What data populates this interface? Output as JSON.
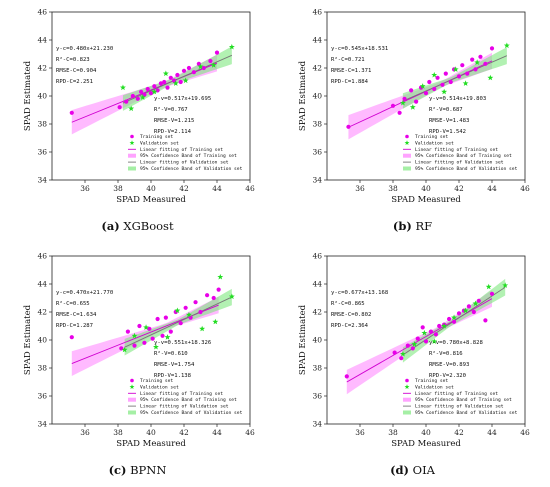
{
  "chart_data": [
    {
      "type": "scatter",
      "panel_label": "(a)",
      "model": "XGBoost",
      "xlabel": "SPAD Measured",
      "ylabel": "SPAD Estimated",
      "xlim": [
        34,
        46
      ],
      "ylim": [
        34,
        46
      ],
      "xticks": [
        36,
        38,
        40,
        42,
        44,
        46
      ],
      "yticks": [
        34,
        36,
        38,
        40,
        42,
        44,
        46
      ],
      "stats_train": [
        "y-c=0.480x+21.230",
        "R²-C=0.823",
        "RMSE-C=0.904",
        "RPD-C=2.251"
      ],
      "stats_val": [
        "y-v=0.517x+19.695",
        "R²-V=0.767",
        "RMSE-V=1.215",
        "RPD-V=2.114"
      ],
      "legend": [
        "Training set",
        "Validation set",
        "Linear fitting of Training set",
        "95% Confidence Band of Training set",
        "Linear fitting of Validation set",
        "95% Confidence Band of Validation set"
      ],
      "train_fit": {
        "slope": 0.48,
        "intercept": 21.23
      },
      "val_fit": {
        "slope": 0.517,
        "intercept": 19.695
      },
      "training": {
        "x": [
          35.2,
          38.1,
          38.5,
          38.9,
          39.2,
          39.4,
          39.6,
          39.8,
          40.0,
          40.2,
          40.4,
          40.6,
          40.8,
          41.0,
          41.2,
          41.4,
          41.6,
          41.8,
          42.0,
          42.3,
          42.6,
          42.9,
          43.2,
          43.6,
          44.0
        ],
        "y": [
          38.8,
          39.2,
          39.6,
          40.0,
          39.8,
          40.3,
          40.1,
          40.5,
          40.2,
          40.7,
          40.4,
          40.9,
          41.0,
          40.6,
          41.3,
          41.1,
          41.5,
          41.0,
          41.8,
          42.0,
          41.7,
          42.3,
          42.0,
          42.5,
          43.1
        ]
      },
      "validation": {
        "x": [
          38.3,
          38.8,
          39.5,
          40.2,
          40.9,
          41.5,
          42.1,
          43.0,
          43.8,
          44.9
        ],
        "y": [
          40.6,
          39.1,
          39.9,
          40.3,
          41.6,
          40.9,
          41.1,
          42.1,
          42.2,
          43.5
        ]
      }
    },
    {
      "type": "scatter",
      "panel_label": "(b)",
      "model": "RF",
      "xlabel": "SPAD Measured",
      "ylabel": "SPAD Estimated",
      "xlim": [
        34,
        46
      ],
      "ylim": [
        34,
        46
      ],
      "xticks": [
        36,
        38,
        40,
        42,
        44,
        46
      ],
      "yticks": [
        34,
        36,
        38,
        40,
        42,
        44,
        46
      ],
      "stats_train": [
        "y-c=0.545x+18.531",
        "R²-C=0.721",
        "RMSE-C=1.371",
        "RPD-C=1.884"
      ],
      "stats_val": [
        "y-v=0.514x+19.803",
        "R²-V=0.687",
        "RMSE-V=1.483",
        "RPD-V=1.542"
      ],
      "legend": [
        "Training set",
        "Validation set",
        "Linear fitting of Training set",
        "95% Confidence Band of Training set",
        "Linear fitting of Validation set",
        "95% Confidence Band of Validation set"
      ],
      "train_fit": {
        "slope": 0.545,
        "intercept": 18.531
      },
      "val_fit": {
        "slope": 0.514,
        "intercept": 19.803
      },
      "training": {
        "x": [
          35.3,
          38.0,
          38.4,
          38.7,
          39.1,
          39.4,
          39.7,
          40.0,
          40.2,
          40.5,
          40.7,
          41.0,
          41.2,
          41.5,
          41.7,
          42.0,
          42.2,
          42.5,
          42.8,
          43.0,
          43.3,
          43.6,
          44.0
        ],
        "y": [
          37.8,
          39.3,
          38.8,
          39.8,
          40.4,
          39.6,
          40.6,
          40.2,
          41.0,
          40.5,
          41.3,
          40.8,
          41.6,
          41.0,
          41.9,
          41.4,
          42.2,
          41.6,
          42.6,
          41.9,
          42.8,
          42.3,
          43.4
        ]
      },
      "validation": {
        "x": [
          38.6,
          39.2,
          39.8,
          40.5,
          41.1,
          41.8,
          42.4,
          43.1,
          43.9,
          44.9
        ],
        "y": [
          39.5,
          39.2,
          40.7,
          41.5,
          40.3,
          41.9,
          40.9,
          42.4,
          41.3,
          43.6
        ]
      }
    },
    {
      "type": "scatter",
      "panel_label": "(c)",
      "model": "BPNN",
      "xlabel": "SPAD Measured",
      "ylabel": "SPAD Estimated",
      "xlim": [
        34,
        46
      ],
      "ylim": [
        34,
        46
      ],
      "xticks": [
        36,
        38,
        40,
        42,
        44,
        46
      ],
      "yticks": [
        34,
        36,
        38,
        40,
        42,
        44,
        46
      ],
      "stats_train": [
        "y-c=0.470x+21.770",
        "R²-C=0.655",
        "RMSE-C=1.634",
        "RPD-C=1.287"
      ],
      "stats_val": [
        "y-v=0.551x+18.326",
        "R²-V=0.610",
        "RMSE-V=1.754",
        "RPD-V=1.138"
      ],
      "legend": [
        "Training set",
        "Validation set",
        "Linear fitting of Training set",
        "95% Confidence Band of Training set",
        "Linear fitting of Validation set",
        "95% Confidence Band of Validation set"
      ],
      "train_fit": {
        "slope": 0.47,
        "intercept": 21.77
      },
      "val_fit": {
        "slope": 0.551,
        "intercept": 18.326
      },
      "training": {
        "x": [
          35.2,
          38.2,
          38.6,
          39.0,
          39.3,
          39.6,
          39.9,
          40.1,
          40.4,
          40.7,
          40.9,
          41.2,
          41.5,
          41.8,
          42.1,
          42.4,
          42.7,
          43.0,
          43.4,
          43.8,
          44.1
        ],
        "y": [
          40.2,
          39.4,
          40.6,
          39.6,
          41.0,
          39.8,
          40.8,
          40.1,
          41.5,
          40.3,
          41.6,
          40.6,
          42.0,
          41.2,
          42.3,
          41.6,
          42.7,
          42.0,
          43.2,
          43.0,
          43.6
        ]
      },
      "validation": {
        "x": [
          38.4,
          39.0,
          39.7,
          40.3,
          41.0,
          41.6,
          42.3,
          43.1,
          43.9,
          44.2,
          44.9
        ],
        "y": [
          39.3,
          40.3,
          40.9,
          39.5,
          40.2,
          42.1,
          41.8,
          40.8,
          41.3,
          44.5,
          43.1
        ]
      }
    },
    {
      "type": "scatter",
      "panel_label": "(d)",
      "model": "OIA",
      "xlabel": "SPAD Measured",
      "ylabel": "SPAD Estimated",
      "xlim": [
        34,
        46
      ],
      "ylim": [
        34,
        46
      ],
      "xticks": [
        36,
        38,
        40,
        42,
        44,
        46
      ],
      "yticks": [
        34,
        36,
        38,
        40,
        42,
        44,
        46
      ],
      "stats_train": [
        "y-c=0.677x+13.168",
        "R²-C=0.865",
        "RMSE-C=0.802",
        "RPD-C=2.364"
      ],
      "stats_val": [
        "y-v=0.780x+8.828",
        "R²-V=0.816",
        "RMSE-V=0.893",
        "RPD-V=2.320"
      ],
      "legend": [
        "Training set",
        "Validation set",
        "Linear fitting of Training set",
        "95% Confidence Band of Training set",
        "Linear fitting of Validation set",
        "95% Confidence Band of Validation set"
      ],
      "train_fit": {
        "slope": 0.677,
        "intercept": 13.168
      },
      "val_fit": {
        "slope": 0.78,
        "intercept": 8.828
      },
      "training": {
        "x": [
          35.2,
          38.1,
          38.5,
          38.9,
          39.2,
          39.5,
          39.8,
          40.0,
          40.3,
          40.6,
          40.8,
          41.1,
          41.4,
          41.7,
          42.0,
          42.3,
          42.6,
          42.9,
          43.2,
          43.6,
          44.0
        ],
        "y": [
          37.4,
          39.1,
          38.7,
          39.6,
          39.4,
          40.1,
          40.9,
          39.9,
          40.6,
          40.4,
          41.0,
          41.1,
          41.5,
          41.3,
          41.9,
          42.1,
          42.4,
          42.0,
          42.8,
          41.4,
          43.3
        ]
      },
      "validation": {
        "x": [
          38.6,
          39.3,
          39.9,
          40.5,
          41.1,
          41.7,
          42.4,
          43.0,
          43.8,
          44.8
        ],
        "y": [
          39.0,
          39.7,
          40.5,
          39.9,
          41.0,
          41.6,
          42.1,
          42.6,
          43.8,
          43.9
        ]
      }
    }
  ],
  "colors": {
    "training": "#e800e8",
    "validation": "#22dd22",
    "train_fit": "#d000d0",
    "train_band": "#ff66ff",
    "val_fit": "#777777",
    "val_band": "#7fe87f"
  }
}
